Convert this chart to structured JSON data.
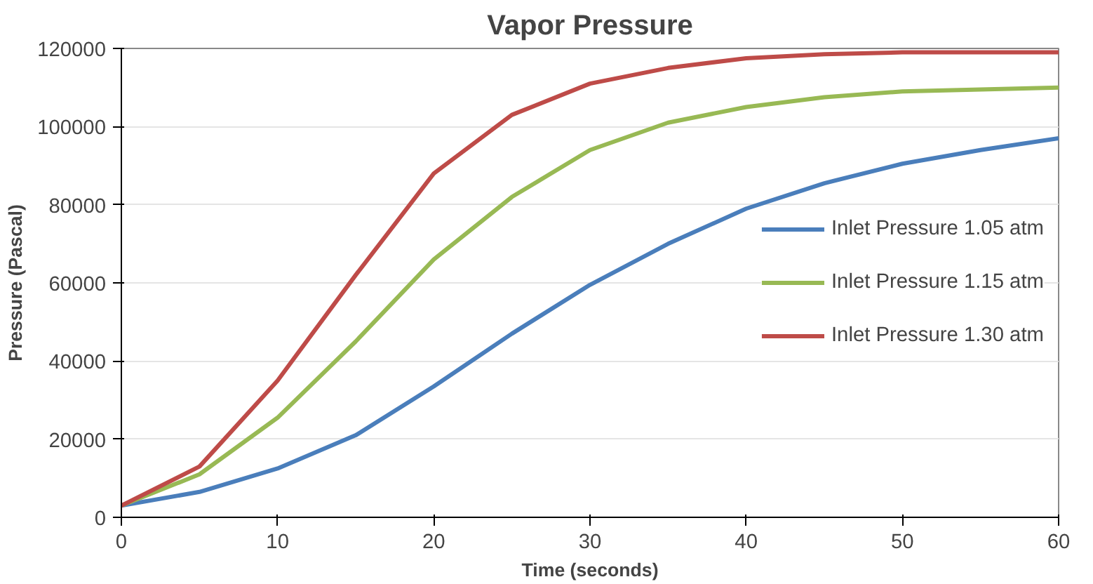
{
  "chart_data": {
    "type": "line",
    "title": "Vapor Pressure",
    "xlabel": "Time (seconds)",
    "ylabel": "Pressure (Pascal)",
    "x": [
      0,
      5,
      10,
      15,
      20,
      25,
      30,
      35,
      40,
      45,
      50,
      55,
      60
    ],
    "series": [
      {
        "name": "Inlet Pressure 1.05 atm",
        "color": "#4a7ebb",
        "values": [
          3000,
          6500,
          12500,
          21000,
          33500,
          47000,
          59500,
          70000,
          79000,
          85500,
          90500,
          94000,
          97000
        ]
      },
      {
        "name": "Inlet Pressure 1.15 atm",
        "color": "#98b954",
        "values": [
          3000,
          11000,
          25500,
          45000,
          66000,
          82000,
          94000,
          101000,
          105000,
          107500,
          109000,
          109500,
          110000
        ]
      },
      {
        "name": "Inlet Pressure 1.30 atm",
        "color": "#be4b48",
        "values": [
          3000,
          13000,
          35000,
          62000,
          88000,
          103000,
          111000,
          115000,
          117500,
          118500,
          119000,
          119000,
          119000
        ]
      }
    ],
    "xlim": [
      0,
      60
    ],
    "xticks": [
      0,
      10,
      20,
      30,
      40,
      50,
      60
    ],
    "ylim": [
      0,
      120000
    ],
    "yticks": [
      0,
      20000,
      40000,
      60000,
      80000,
      100000,
      120000
    ],
    "grid": "y",
    "legend": "right",
    "marker": "none",
    "line_style": "solid"
  }
}
